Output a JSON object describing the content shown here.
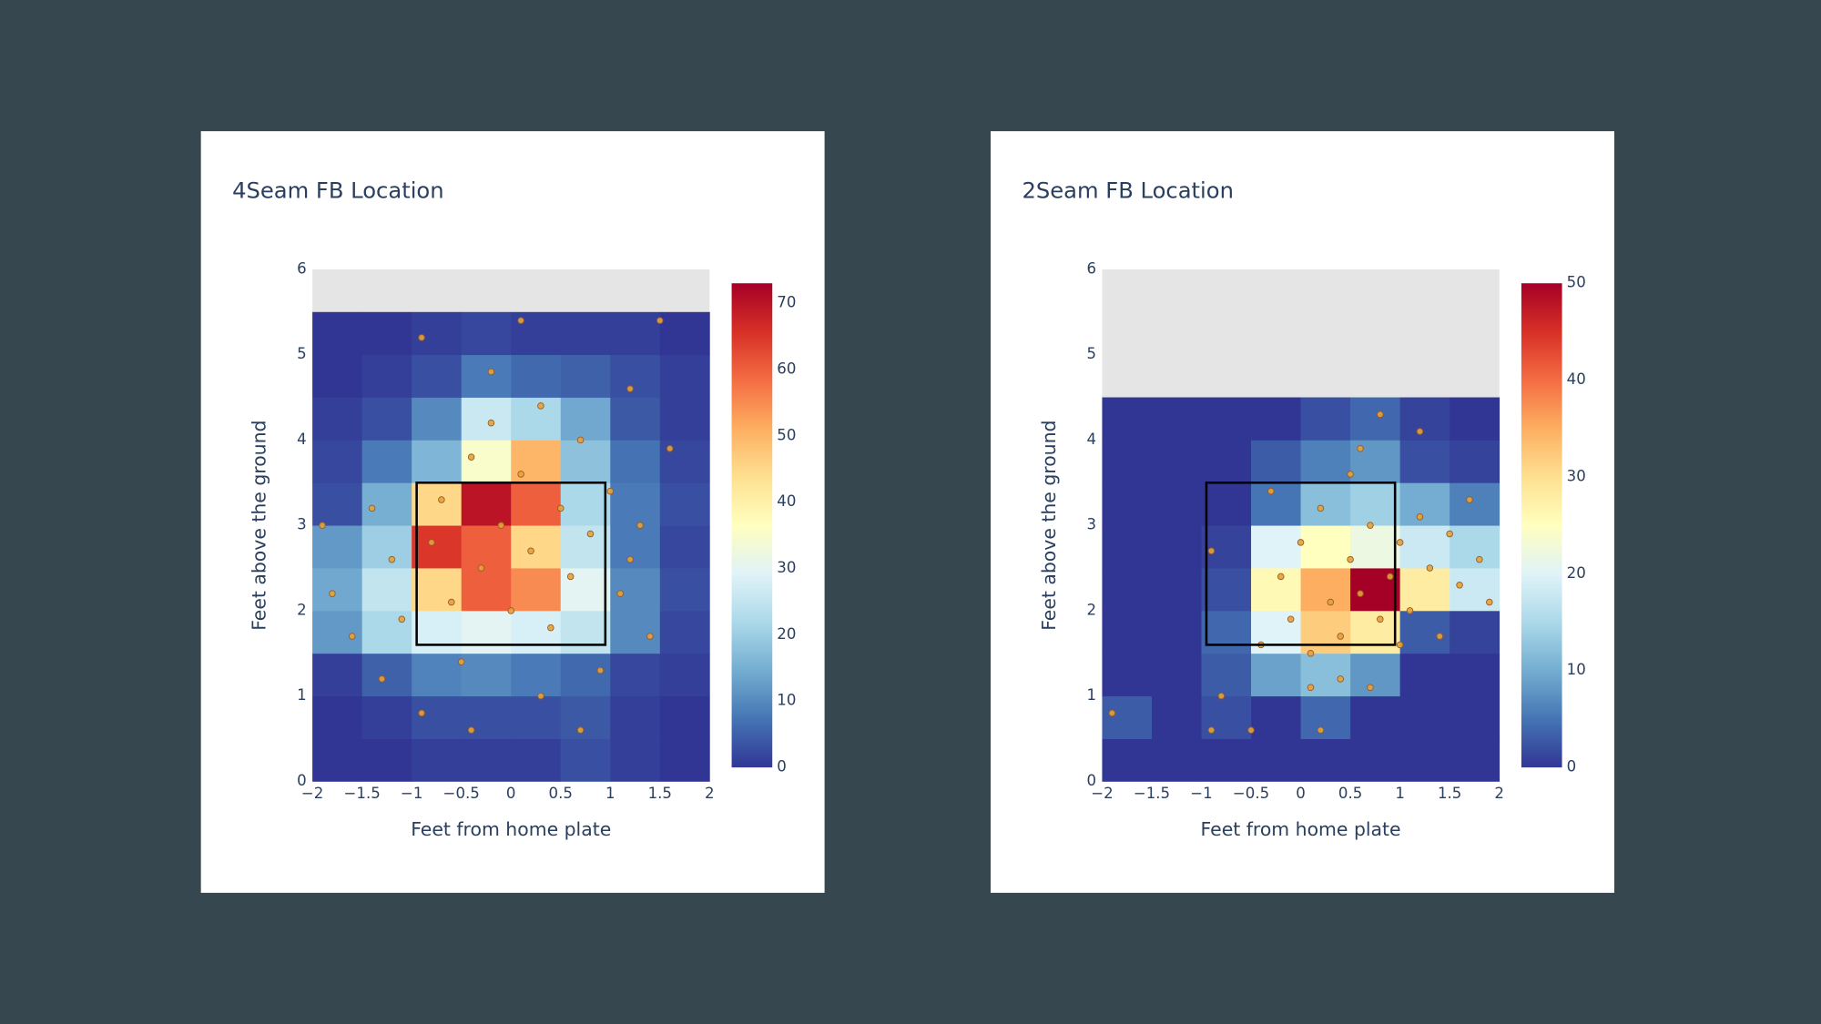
{
  "chart_data": [
    {
      "type": "heatmap",
      "title": "4Seam FB Location",
      "x_label": "Feet from home plate",
      "y_label": "Feet above the ground",
      "xbins": [
        -2,
        -1.5,
        -1,
        -0.5,
        0,
        0.5,
        1,
        1.5,
        2
      ],
      "ybins": [
        0,
        0.5,
        1,
        1.5,
        2,
        2.5,
        3,
        3.5,
        4,
        4.5,
        5,
        5.5
      ],
      "z": [
        [
          0,
          0,
          1,
          1,
          1,
          3,
          1,
          0
        ],
        [
          0,
          1,
          3,
          3,
          3,
          4,
          1,
          0
        ],
        [
          1,
          5,
          9,
          10,
          8,
          6,
          2,
          1
        ],
        [
          12,
          22,
          28,
          30,
          28,
          25,
          10,
          2
        ],
        [
          14,
          25,
          45,
          60,
          55,
          30,
          10,
          3
        ],
        [
          12,
          20,
          65,
          60,
          45,
          25,
          8,
          2
        ],
        [
          3,
          15,
          45,
          70,
          60,
          22,
          8,
          3
        ],
        [
          2,
          8,
          16,
          35,
          50,
          18,
          7,
          2
        ],
        [
          1,
          3,
          10,
          26,
          22,
          14,
          4,
          1
        ],
        [
          0,
          1,
          3,
          8,
          6,
          5,
          3,
          1
        ],
        [
          0,
          0,
          1,
          2,
          1,
          1,
          1,
          0
        ]
      ],
      "zlim": [
        0,
        73
      ],
      "colorbar_ticks": [
        0,
        10,
        20,
        30,
        40,
        50,
        60,
        70
      ],
      "colorscale": [
        "#313695",
        "#4575b4",
        "#74add1",
        "#abd9e9",
        "#e0f3f8",
        "#ffffbf",
        "#fee090",
        "#fdae61",
        "#f46d43",
        "#d73027",
        "#a50026"
      ],
      "xlim": [
        -2,
        2
      ],
      "ylim": [
        0,
        6
      ],
      "xticks": [
        {
          "value": -2,
          "label": "−2"
        },
        {
          "value": -1.5,
          "label": "−1.5"
        },
        {
          "value": -1,
          "label": "−1"
        },
        {
          "value": -0.5,
          "label": "−0.5"
        },
        0,
        0.5,
        1,
        1.5,
        2
      ],
      "yticks": [
        0,
        1,
        2,
        3,
        4,
        5,
        6
      ],
      "zone": {
        "x": [
          -0.95,
          0.95
        ],
        "y": [
          1.6,
          3.5
        ]
      },
      "points": {
        "x": [
          -1.8,
          -1.6,
          -1.9,
          -1.4,
          -1.2,
          -1.1,
          -0.8,
          -0.7,
          -0.6,
          -0.5,
          -0.4,
          -0.3,
          -0.2,
          -0.1,
          0,
          0.1,
          0.2,
          0.3,
          0.4,
          0.5,
          0.6,
          0.7,
          0.8,
          0.9,
          1.0,
          1.1,
          1.2,
          1.3,
          1.4,
          1.6,
          -0.9,
          0.7,
          -0.4,
          0.1,
          -0.9,
          1.5,
          -1.3,
          0.3,
          -0.2,
          1.2
        ],
        "y": [
          2.2,
          1.7,
          3.0,
          3.2,
          2.6,
          1.9,
          2.8,
          3.3,
          2.1,
          1.4,
          3.8,
          2.5,
          4.2,
          3.0,
          2.0,
          3.6,
          2.7,
          4.4,
          1.8,
          3.2,
          2.4,
          4.0,
          2.9,
          1.3,
          3.4,
          2.2,
          4.6,
          3.0,
          1.7,
          3.9,
          0.8,
          0.6,
          0.6,
          5.4,
          5.2,
          5.4,
          1.2,
          1.0,
          4.8,
          2.6
        ]
      },
      "point_color": "#e3a23a"
    },
    {
      "type": "heatmap",
      "title": "2Seam FB Location",
      "x_label": "Feet from home plate",
      "y_label": "Feet above the ground",
      "xbins": [
        -2,
        -1.5,
        -1,
        -0.5,
        0,
        0.5,
        1,
        1.5,
        2
      ],
      "ybins": [
        0,
        0.5,
        1,
        1.5,
        2,
        2.5,
        3,
        3.5,
        4,
        4.5
      ],
      "z": [
        [
          0,
          0,
          0,
          0,
          0,
          0,
          0,
          0
        ],
        [
          3,
          0,
          2,
          0,
          4,
          0,
          0,
          0
        ],
        [
          0,
          0,
          3,
          9,
          12,
          8,
          0,
          0
        ],
        [
          0,
          0,
          4,
          20,
          32,
          28,
          3,
          1
        ],
        [
          0,
          0,
          2,
          26,
          35,
          50,
          28,
          18
        ],
        [
          0,
          0,
          1,
          20,
          25,
          22,
          18,
          15
        ],
        [
          0,
          0,
          0,
          5,
          12,
          14,
          10,
          6
        ],
        [
          0,
          0,
          0,
          3,
          6,
          8,
          2,
          1
        ],
        [
          0,
          0,
          0,
          0,
          2,
          4,
          1,
          0
        ]
      ],
      "zlim": [
        0,
        50
      ],
      "colorbar_ticks": [
        0,
        10,
        20,
        30,
        40,
        50
      ],
      "colorscale": [
        "#313695",
        "#4575b4",
        "#74add1",
        "#abd9e9",
        "#e0f3f8",
        "#ffffbf",
        "#fee090",
        "#fdae61",
        "#f46d43",
        "#d73027",
        "#a50026"
      ],
      "xlim": [
        -2,
        2
      ],
      "ylim": [
        0,
        6
      ],
      "xticks": [
        {
          "value": -2,
          "label": "−2"
        },
        {
          "value": -1.5,
          "label": "−1.5"
        },
        {
          "value": -1,
          "label": "−1"
        },
        {
          "value": -0.5,
          "label": "−0.5"
        },
        0,
        0.5,
        1,
        1.5,
        2
      ],
      "yticks": [
        0,
        1,
        2,
        3,
        4,
        5,
        6
      ],
      "zone": {
        "x": [
          -0.95,
          0.95
        ],
        "y": [
          1.6,
          3.5
        ]
      },
      "points": {
        "x": [
          -1.9,
          -0.9,
          -0.5,
          -0.8,
          -0.4,
          -0.2,
          -0.1,
          0,
          0.1,
          0.2,
          0.3,
          0.4,
          0.5,
          0.6,
          0.7,
          0.8,
          0.9,
          1.0,
          1.1,
          1.2,
          1.3,
          1.4,
          1.5,
          1.6,
          1.7,
          1.8,
          1.9,
          0.6,
          0.2,
          0.4,
          1.2,
          0.8,
          -0.3,
          0.5,
          -0.9,
          0.1,
          0.7,
          1.0
        ],
        "y": [
          0.8,
          0.6,
          0.6,
          1.0,
          1.6,
          2.4,
          1.9,
          2.8,
          1.5,
          3.2,
          2.1,
          1.7,
          2.6,
          2.2,
          3.0,
          1.9,
          2.4,
          2.8,
          2.0,
          3.1,
          2.5,
          1.7,
          2.9,
          2.3,
          3.3,
          2.6,
          2.1,
          3.9,
          0.6,
          1.2,
          4.1,
          4.3,
          3.4,
          3.6,
          2.7,
          1.1,
          1.1,
          1.6
        ]
      },
      "point_color": "#e3a23a"
    }
  ]
}
